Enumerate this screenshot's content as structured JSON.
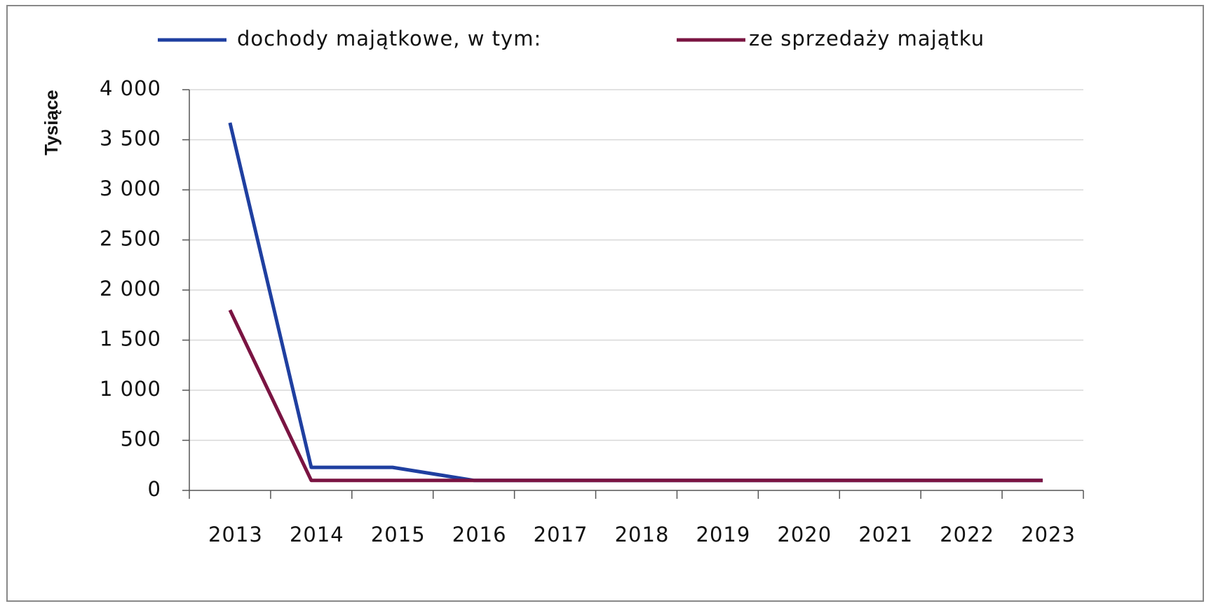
{
  "chart_data": {
    "type": "line",
    "y_axis_label": "Tysiące",
    "categories": [
      "2013",
      "2014",
      "2015",
      "2016",
      "2017",
      "2018",
      "2019",
      "2020",
      "2021",
      "2022",
      "2023"
    ],
    "series": [
      {
        "name": "dochody majątkowe, w tym:",
        "color": "#1f3fa0",
        "values": [
          3670,
          230,
          230,
          100,
          100,
          100,
          100,
          100,
          100,
          100,
          100
        ]
      },
      {
        "name": "ze sprzedaży majątku",
        "color": "#7a1442",
        "values": [
          1800,
          100,
          100,
          100,
          100,
          100,
          100,
          100,
          100,
          100,
          100
        ]
      }
    ],
    "ylim": [
      0,
      4000
    ],
    "yticks": [
      0,
      500,
      {
        "value": 1000,
        "label": "1 000"
      },
      {
        "value": 1500,
        "label": "1 500"
      },
      {
        "value": 2000,
        "label": "2 000"
      },
      {
        "value": 2500,
        "label": "2 500"
      },
      {
        "value": 3000,
        "label": "3 000"
      },
      {
        "value": 3500,
        "label": "3 500"
      },
      {
        "value": 4000,
        "label": "4 000"
      }
    ],
    "grid": true,
    "legend": "top"
  }
}
